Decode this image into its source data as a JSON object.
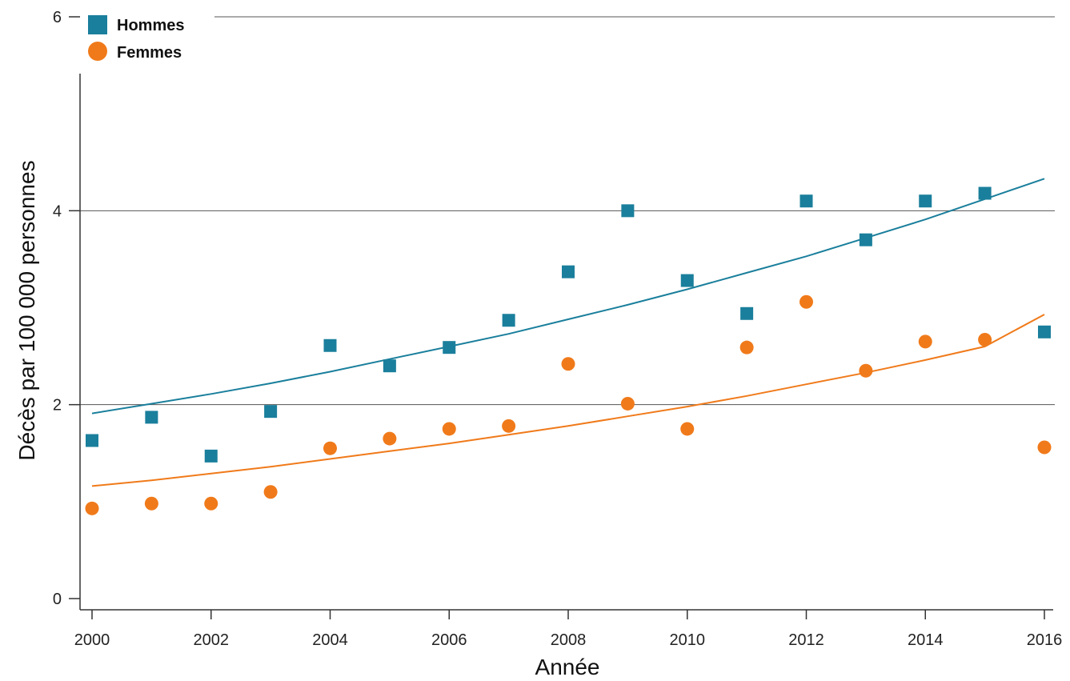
{
  "chart_data": {
    "type": "scatter",
    "xlabel": "Année",
    "ylabel": "Décès par 100 000 personnes",
    "xlim": [
      2000,
      2016
    ],
    "ylim": [
      0,
      6
    ],
    "x_ticks": [
      "2000",
      "2002",
      "2004",
      "2006",
      "2008",
      "2010",
      "2012",
      "2014",
      "2016"
    ],
    "y_ticks": [
      "0",
      "2",
      "4",
      "6"
    ],
    "grid": "horizontal",
    "legend_position": "top-left",
    "x": [
      2000,
      2001,
      2002,
      2003,
      2004,
      2005,
      2006,
      2007,
      2008,
      2009,
      2010,
      2011,
      2012,
      2013,
      2014,
      2015,
      2016
    ],
    "series": [
      {
        "name": "Hommes",
        "marker": "square",
        "color": "#1a7f9c",
        "values": [
          1.63,
          1.87,
          1.47,
          1.93,
          2.61,
          2.4,
          2.59,
          2.87,
          3.37,
          4.0,
          3.28,
          2.94,
          4.1,
          3.7,
          4.1,
          4.18,
          2.75
        ],
        "trend": [
          1.91,
          2.01,
          2.11,
          2.22,
          2.34,
          2.47,
          2.6,
          2.73,
          2.88,
          3.03,
          3.19,
          3.36,
          3.53,
          3.72,
          3.91,
          4.12,
          4.33
        ]
      },
      {
        "name": "Femmes",
        "marker": "circle",
        "color": "#f07a1a",
        "values": [
          0.93,
          0.98,
          0.98,
          1.1,
          1.55,
          1.65,
          1.75,
          1.78,
          2.42,
          2.01,
          1.75,
          2.59,
          3.06,
          2.35,
          2.65,
          2.67,
          1.56
        ],
        "trend": [
          1.16,
          1.22,
          1.29,
          1.36,
          1.44,
          1.52,
          1.6,
          1.69,
          1.78,
          1.88,
          1.98,
          2.09,
          2.21,
          2.33,
          2.46,
          2.6,
          2.93
        ]
      }
    ]
  }
}
